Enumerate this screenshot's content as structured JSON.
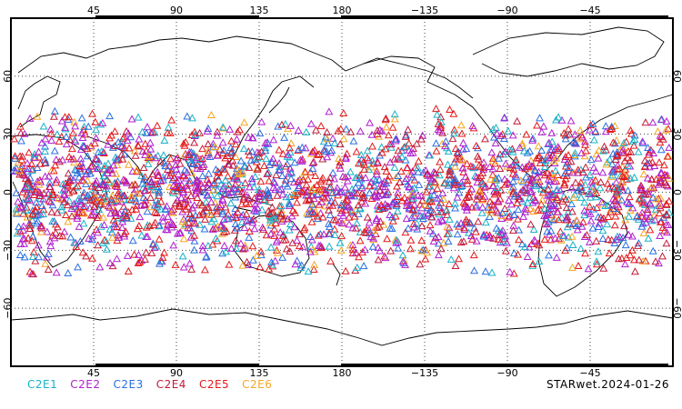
{
  "footer": {
    "title": "STARwet.2024-01-26"
  },
  "legend": [
    {
      "label": "C2E1",
      "color": "#17b2c8"
    },
    {
      "label": "C2E2",
      "color": "#b01fd0"
    },
    {
      "label": "C2E3",
      "color": "#2b6fe0"
    },
    {
      "label": "C2E4",
      "color": "#c21b3a"
    },
    {
      "label": "C2E5",
      "color": "#e31a1a"
    },
    {
      "label": "C2E6",
      "color": "#f5a623"
    }
  ],
  "axes": {
    "lon_ticks": [
      "45",
      "90",
      "135",
      "180",
      "−135",
      "−90",
      "−45"
    ],
    "lat_ticks_left": [
      "60",
      "30",
      "0",
      "−30",
      "−60"
    ],
    "lat_ticks_right": [
      "60",
      "30",
      "0",
      "−30",
      "−60"
    ],
    "lon_range": [
      0,
      360
    ],
    "lat_range": [
      -90,
      90
    ],
    "grid": "dotted"
  },
  "map": {
    "projection": "cylindrical equidistant",
    "center_longitude": 180,
    "marker": "open triangle",
    "lat_coverage": [
      -45,
      45
    ],
    "point_count": 2600
  }
}
